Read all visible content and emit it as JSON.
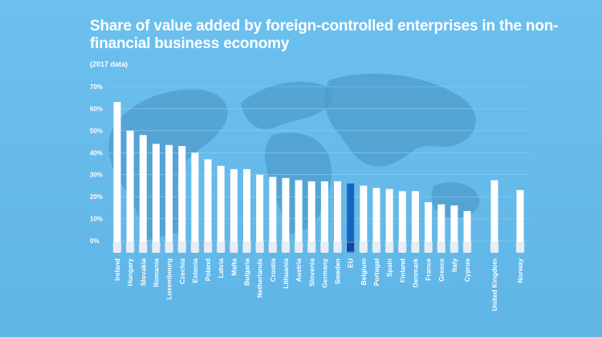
{
  "chart_data": {
    "type": "bar",
    "title": "Share of value added by foreign-controlled enterprises in the non-financial business economy",
    "subtitle": "(2017 data)",
    "ylim": [
      0,
      70
    ],
    "yticks": [
      "0%",
      "10%",
      "20%",
      "30%",
      "40%",
      "50%",
      "60%",
      "70%"
    ],
    "grid": true,
    "categories": [
      "Ireland",
      "Hungary",
      "Slovakia",
      "Romania",
      "Luxembourg",
      "Czechia",
      "Estonia",
      "Poland",
      "Latvia",
      "Malta",
      "Bulgaria",
      "Netherlands",
      "Croatia",
      "Lithuania",
      "Austria",
      "Slovenia",
      "Germany",
      "Sweden",
      "EU",
      "Belgium",
      "Portugal",
      "Spain",
      "Finland",
      "Denmark",
      "France",
      "Greece",
      "Italy",
      "Cyprus",
      "United Kingdom",
      "Norway"
    ],
    "values": [
      63,
      50,
      48,
      44,
      43.5,
      43,
      40,
      37,
      34,
      32.5,
      32.5,
      30,
      29,
      28.5,
      27.5,
      27,
      27,
      27,
      26,
      25,
      24,
      23.5,
      22.5,
      22.5,
      17.5,
      16.5,
      16,
      13.5,
      27.5,
      23
    ],
    "bar_colors": {
      "default": "#ffffff",
      "EU": "#1565c0"
    }
  }
}
